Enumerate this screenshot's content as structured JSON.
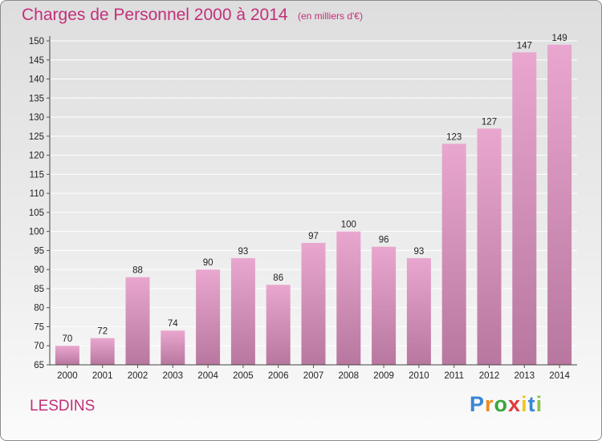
{
  "header": {
    "title": "Charges de Personnel 2000 à 2014",
    "subtitle": "(en milliers d'€)"
  },
  "footer": {
    "commune": "LESDINS",
    "logo_text": "Proxiti"
  },
  "colors": {
    "accent": "#c2307a",
    "bar_top": "#e9a7cf",
    "bar_bottom": "#b8779f",
    "grid": "#ffffff"
  },
  "chart_data": {
    "type": "bar",
    "title": "Charges de Personnel 2000 à 2014",
    "subtitle": "(en milliers d'€)",
    "categories": [
      "2000",
      "2001",
      "2002",
      "2003",
      "2004",
      "2005",
      "2006",
      "2007",
      "2008",
      "2009",
      "2010",
      "2011",
      "2012",
      "2013",
      "2014"
    ],
    "values": [
      70,
      72,
      88,
      74,
      90,
      93,
      86,
      97,
      100,
      96,
      93,
      123,
      127,
      147,
      149
    ],
    "ylim": [
      65,
      150
    ],
    "yticks": [
      65,
      70,
      75,
      80,
      85,
      90,
      95,
      100,
      105,
      110,
      115,
      120,
      125,
      130,
      135,
      140,
      145,
      150
    ],
    "grid": true,
    "legend": "none"
  }
}
